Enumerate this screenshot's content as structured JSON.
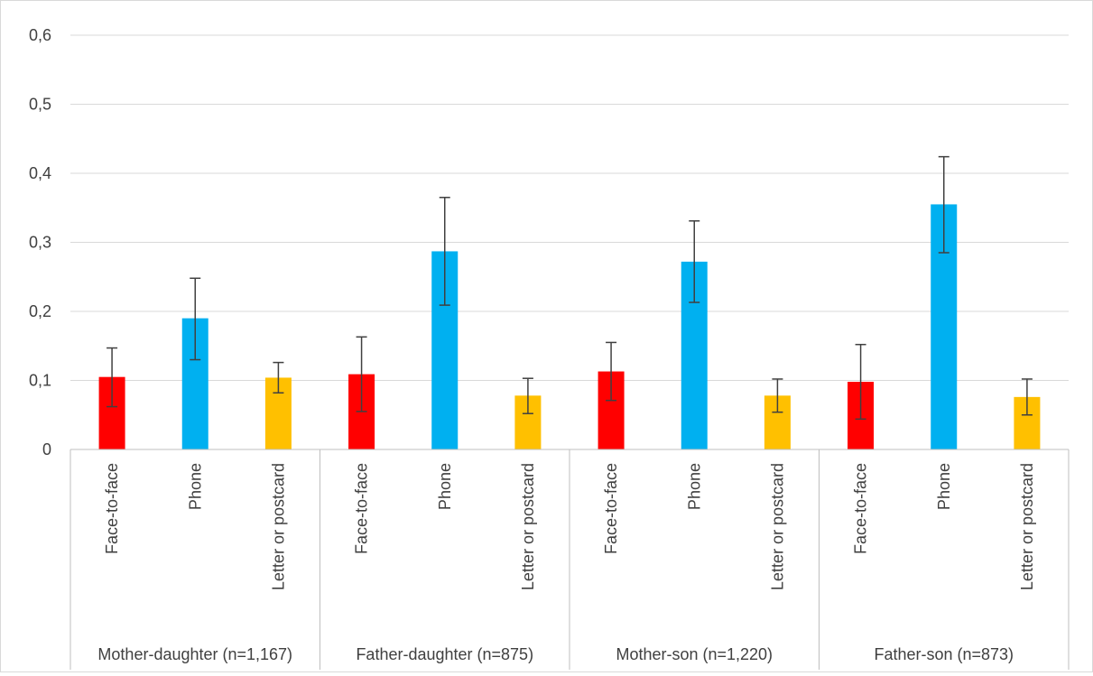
{
  "chart_data": {
    "type": "bar",
    "title": "",
    "xlabel": "",
    "ylabel": "",
    "ylim": [
      0,
      0.6
    ],
    "yticks": [
      "0",
      "0,1",
      "0,2",
      "0,3",
      "0,4",
      "0,5",
      "0,6"
    ],
    "grid": true,
    "legend": "none",
    "groups": [
      {
        "label": "Mother-daughter (n=1,167)",
        "bars": [
          {
            "category": "Face-to-face",
            "value": 0.105,
            "err_low": 0.062,
            "err_high": 0.147
          },
          {
            "category": "Phone",
            "value": 0.19,
            "err_low": 0.13,
            "err_high": 0.248
          },
          {
            "category": "Letter or postcard",
            "value": 0.104,
            "err_low": 0.082,
            "err_high": 0.126
          }
        ]
      },
      {
        "label": "Father-daughter (n=875)",
        "bars": [
          {
            "category": "Face-to-face",
            "value": 0.109,
            "err_low": 0.055,
            "err_high": 0.163
          },
          {
            "category": "Phone",
            "value": 0.287,
            "err_low": 0.209,
            "err_high": 0.365
          },
          {
            "category": "Letter or postcard",
            "value": 0.078,
            "err_low": 0.052,
            "err_high": 0.103
          }
        ]
      },
      {
        "label": "Mother-son (n=1,220)",
        "bars": [
          {
            "category": "Face-to-face",
            "value": 0.113,
            "err_low": 0.071,
            "err_high": 0.155
          },
          {
            "category": "Phone",
            "value": 0.272,
            "err_low": 0.213,
            "err_high": 0.331
          },
          {
            "category": "Letter or postcard",
            "value": 0.078,
            "err_low": 0.054,
            "err_high": 0.102
          }
        ]
      },
      {
        "label": "Father-son (n=873)",
        "bars": [
          {
            "category": "Face-to-face",
            "value": 0.098,
            "err_low": 0.044,
            "err_high": 0.152
          },
          {
            "category": "Phone",
            "value": 0.355,
            "err_low": 0.285,
            "err_high": 0.424
          },
          {
            "category": "Letter or postcard",
            "value": 0.076,
            "err_low": 0.05,
            "err_high": 0.102
          }
        ]
      }
    ],
    "colors": {
      "Face-to-face": "#ff0000",
      "Phone": "#00b0f0",
      "Letter or postcard": "#ffc000",
      "error_bar": "#404040",
      "grid": "#d9d9d9",
      "axis": "#bfbfbf"
    }
  }
}
